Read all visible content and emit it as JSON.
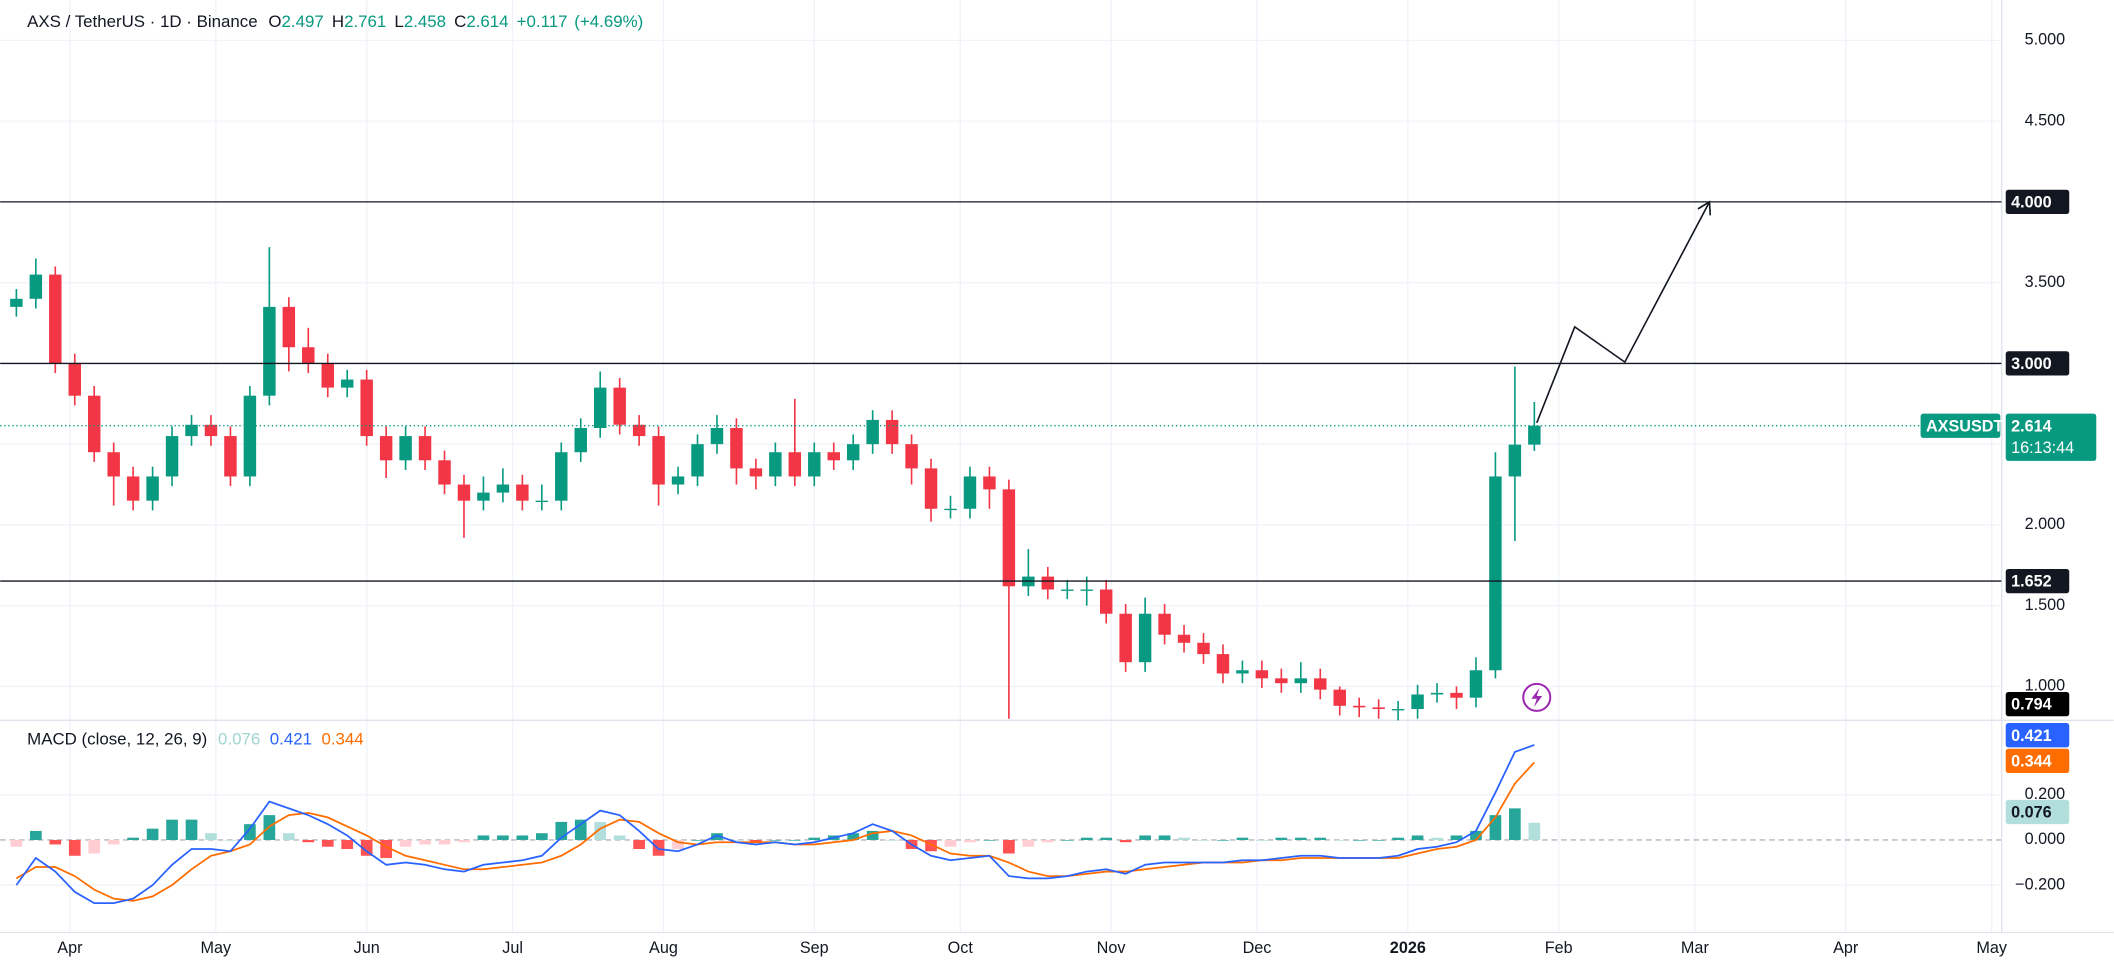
{
  "chart_data": [
    {
      "type": "candlestick",
      "title": "AXS / TetherUS · 1D · Binance",
      "ohlc_letters": [
        "O",
        "H",
        "L",
        "C"
      ],
      "change": {
        "value": 0.117,
        "label": "+0.117"
      },
      "change_percent": {
        "value": 4.69,
        "label": "(+4.69%)"
      },
      "x": [
        0,
        4,
        8,
        12,
        16,
        20,
        24,
        28,
        32,
        36,
        40,
        44,
        48,
        52,
        56,
        60,
        64,
        68,
        72,
        76,
        80,
        84,
        88,
        92,
        96,
        100,
        104,
        108,
        112,
        116,
        120,
        124,
        128,
        132,
        136,
        140,
        144,
        148,
        152,
        156,
        160,
        164,
        168,
        172,
        176,
        180,
        184,
        188,
        192,
        196,
        200,
        204,
        208,
        212,
        216,
        220,
        224,
        228,
        232,
        236,
        240,
        244,
        248,
        252,
        256,
        260,
        264,
        268,
        272,
        276,
        280,
        284,
        288,
        292,
        296,
        300,
        304,
        308,
        312
      ],
      "open": [
        3.35,
        3.4,
        3.55,
        3.0,
        2.8,
        2.45,
        2.3,
        2.15,
        2.3,
        2.55,
        2.62,
        2.55,
        2.3,
        2.8,
        3.35,
        3.1,
        3.0,
        2.85,
        2.9,
        2.55,
        2.4,
        2.55,
        2.4,
        2.25,
        2.15,
        2.2,
        2.25,
        2.15,
        2.15,
        2.45,
        2.6,
        2.85,
        2.62,
        2.55,
        2.25,
        2.3,
        2.5,
        2.6,
        2.35,
        2.3,
        2.45,
        2.3,
        2.45,
        2.4,
        2.5,
        2.65,
        2.5,
        2.35,
        2.1,
        2.1,
        2.3,
        2.22,
        1.62,
        1.68,
        1.6,
        1.6,
        1.6,
        1.45,
        1.15,
        1.45,
        1.32,
        1.27,
        1.2,
        1.08,
        1.1,
        1.05,
        1.02,
        1.05,
        0.98,
        0.88,
        0.87,
        0.86,
        0.86,
        0.95,
        0.96,
        0.93,
        1.1,
        2.3,
        2.497
      ],
      "high": [
        3.46,
        3.65,
        3.6,
        3.06,
        2.86,
        2.51,
        2.36,
        2.36,
        2.61,
        2.68,
        2.68,
        2.61,
        2.86,
        3.72,
        3.41,
        3.22,
        3.06,
        2.96,
        2.96,
        2.61,
        2.61,
        2.61,
        2.46,
        2.31,
        2.3,
        2.35,
        2.31,
        2.25,
        2.51,
        2.66,
        2.95,
        2.91,
        2.68,
        2.61,
        2.36,
        2.56,
        2.68,
        2.66,
        2.41,
        2.51,
        2.78,
        2.51,
        2.51,
        2.56,
        2.71,
        2.71,
        2.56,
        2.41,
        2.18,
        2.36,
        2.36,
        2.28,
        1.85,
        1.74,
        1.66,
        1.68,
        1.66,
        1.51,
        1.55,
        1.51,
        1.38,
        1.33,
        1.26,
        1.16,
        1.16,
        1.11,
        1.15,
        1.11,
        1.0,
        0.93,
        0.92,
        0.91,
        1.01,
        1.02,
        1.0,
        1.18,
        2.45,
        2.98,
        2.761
      ],
      "low": [
        3.29,
        3.34,
        2.94,
        2.74,
        2.39,
        2.12,
        2.09,
        2.09,
        2.24,
        2.49,
        2.49,
        2.24,
        2.24,
        2.74,
        2.95,
        2.94,
        2.79,
        2.79,
        2.49,
        2.29,
        2.34,
        2.34,
        2.19,
        1.92,
        2.09,
        2.14,
        2.09,
        2.09,
        2.09,
        2.39,
        2.54,
        2.56,
        2.49,
        2.12,
        2.19,
        2.24,
        2.44,
        2.25,
        2.22,
        2.24,
        2.24,
        2.24,
        2.34,
        2.34,
        2.44,
        2.44,
        2.25,
        2.02,
        2.04,
        2.04,
        2.1,
        0.8,
        1.56,
        1.54,
        1.54,
        1.5,
        1.39,
        1.09,
        1.09,
        1.26,
        1.21,
        1.14,
        1.02,
        1.02,
        0.99,
        0.96,
        0.96,
        0.92,
        0.82,
        0.81,
        0.8,
        0.79,
        0.8,
        0.9,
        0.86,
        0.87,
        1.05,
        1.9,
        2.458
      ],
      "close": [
        3.4,
        3.55,
        3.0,
        2.8,
        2.45,
        2.3,
        2.15,
        2.3,
        2.55,
        2.62,
        2.55,
        2.3,
        2.8,
        3.35,
        3.1,
        3.0,
        2.85,
        2.9,
        2.55,
        2.4,
        2.55,
        2.4,
        2.25,
        2.15,
        2.2,
        2.25,
        2.15,
        2.15,
        2.45,
        2.6,
        2.85,
        2.62,
        2.55,
        2.25,
        2.3,
        2.5,
        2.6,
        2.35,
        2.3,
        2.45,
        2.3,
        2.45,
        2.4,
        2.5,
        2.65,
        2.5,
        2.35,
        2.1,
        2.1,
        2.3,
        2.22,
        1.62,
        1.68,
        1.6,
        1.6,
        1.6,
        1.45,
        1.15,
        1.45,
        1.32,
        1.27,
        1.2,
        1.08,
        1.1,
        1.05,
        1.02,
        1.05,
        0.98,
        0.88,
        0.87,
        0.86,
        0.86,
        0.95,
        0.96,
        0.93,
        1.1,
        2.3,
        2.497,
        2.614
      ],
      "up_color": "#089981",
      "down_color": "#f23645",
      "xlim": [
        -3,
        408
      ],
      "xticks": [
        {
          "value": 11,
          "label": "Apr"
        },
        {
          "value": 41,
          "label": "May"
        },
        {
          "value": 72,
          "label": "Jun"
        },
        {
          "value": 102,
          "label": "Jul"
        },
        {
          "value": 133,
          "label": "Aug"
        },
        {
          "value": 164,
          "label": "Sep"
        },
        {
          "value": 194,
          "label": "Oct"
        },
        {
          "value": 225,
          "label": "Nov"
        },
        {
          "value": 255,
          "label": "Dec"
        },
        {
          "value": 286,
          "label": "2026"
        },
        {
          "value": 317,
          "label": "Feb"
        },
        {
          "value": 345,
          "label": "Mar"
        },
        {
          "value": 376,
          "label": "Apr"
        },
        {
          "value": 406,
          "label": "May"
        }
      ],
      "ylim": [
        0.79,
        5.25
      ],
      "yticks": [
        {
          "value": 1,
          "label": "1.000"
        },
        {
          "value": 1.5,
          "label": "1.500"
        },
        {
          "value": 2,
          "label": "2.000"
        },
        {
          "value": 2.5,
          "label": "2.500"
        },
        {
          "value": 3,
          "label": "3.000"
        },
        {
          "value": 3.5,
          "label": "3.500"
        },
        {
          "value": 4,
          "label": "4.000"
        },
        {
          "value": 4.5,
          "label": "4.500"
        },
        {
          "value": 5,
          "label": "5.000"
        }
      ],
      "grid": true,
      "levels": [
        {
          "value": 4,
          "label": "4.000"
        },
        {
          "value": 3,
          "label": "3.000"
        },
        {
          "value": 1.652,
          "label": "1.652"
        }
      ],
      "level_color": "#131722",
      "low_marker": {
        "value": 0.794,
        "label": "0.794"
      },
      "last_price": {
        "symbol": "AXSUSDT",
        "countdown": "16:13:44"
      },
      "projection": {
        "x": [
          312.5,
          320.3,
          330.6,
          348
        ],
        "y": [
          2.632,
          3.226,
          3.008,
          4.0
        ]
      }
    },
    {
      "type": "macd",
      "title": "MACD (close, 12, 26, 9)",
      "histogram": [
        -0.03,
        0.04,
        -0.02,
        -0.07,
        -0.06,
        -0.02,
        0.01,
        0.05,
        0.09,
        0.09,
        0.03,
        0.0,
        0.07,
        0.11,
        0.03,
        -0.01,
        -0.03,
        -0.04,
        -0.07,
        -0.08,
        -0.03,
        -0.02,
        -0.02,
        -0.01,
        0.02,
        0.02,
        0.02,
        0.03,
        0.08,
        0.09,
        0.08,
        0.02,
        -0.04,
        -0.07,
        -0.04,
        0.0,
        0.03,
        0.0,
        -0.01,
        0.0,
        0.0,
        0.01,
        0.02,
        0.03,
        0.04,
        0.0,
        -0.04,
        -0.05,
        -0.03,
        -0.01,
        0.0,
        -0.06,
        -0.03,
        -0.01,
        0.0,
        0.01,
        0.01,
        -0.01,
        0.02,
        0.02,
        0.01,
        0.0,
        0.0,
        0.01,
        0.0,
        0.01,
        0.01,
        0.01,
        0.0,
        0.0,
        0.0,
        0.01,
        0.02,
        0.01,
        0.02,
        0.04,
        0.11,
        0.14,
        0.076
      ],
      "macd_line": [
        -0.2,
        -0.08,
        -0.14,
        -0.23,
        -0.28,
        -0.28,
        -0.26,
        -0.2,
        -0.11,
        -0.04,
        -0.04,
        -0.05,
        0.05,
        0.17,
        0.14,
        0.11,
        0.07,
        0.02,
        -0.05,
        -0.11,
        -0.1,
        -0.11,
        -0.13,
        -0.14,
        -0.11,
        -0.1,
        -0.09,
        -0.07,
        0.01,
        0.07,
        0.13,
        0.11,
        0.04,
        -0.04,
        -0.05,
        -0.02,
        0.02,
        -0.01,
        -0.02,
        -0.01,
        -0.02,
        -0.01,
        0.01,
        0.03,
        0.07,
        0.04,
        -0.02,
        -0.07,
        -0.09,
        -0.08,
        -0.07,
        -0.16,
        -0.17,
        -0.17,
        -0.16,
        -0.14,
        -0.13,
        -0.15,
        -0.11,
        -0.1,
        -0.1,
        -0.1,
        -0.1,
        -0.09,
        -0.09,
        -0.08,
        -0.07,
        -0.07,
        -0.08,
        -0.08,
        -0.08,
        -0.07,
        -0.04,
        -0.03,
        -0.01,
        0.04,
        0.21,
        0.39,
        0.421
      ],
      "signal_line": [
        -0.17,
        -0.12,
        -0.12,
        -0.16,
        -0.22,
        -0.26,
        -0.27,
        -0.25,
        -0.2,
        -0.13,
        -0.07,
        -0.05,
        -0.02,
        0.06,
        0.11,
        0.12,
        0.1,
        0.06,
        0.02,
        -0.03,
        -0.07,
        -0.09,
        -0.11,
        -0.13,
        -0.13,
        -0.12,
        -0.11,
        -0.1,
        -0.07,
        -0.02,
        0.05,
        0.09,
        0.08,
        0.03,
        -0.01,
        -0.02,
        -0.01,
        -0.01,
        -0.01,
        -0.01,
        -0.02,
        -0.02,
        -0.01,
        0.0,
        0.03,
        0.04,
        0.02,
        -0.02,
        -0.06,
        -0.07,
        -0.07,
        -0.1,
        -0.14,
        -0.16,
        -0.16,
        -0.15,
        -0.14,
        -0.14,
        -0.13,
        -0.12,
        -0.11,
        -0.1,
        -0.1,
        -0.1,
        -0.09,
        -0.09,
        -0.08,
        -0.08,
        -0.08,
        -0.08,
        -0.08,
        -0.08,
        -0.06,
        -0.04,
        -0.03,
        0.0,
        0.1,
        0.25,
        0.344
      ],
      "colors": {
        "histogram_up": "#26a69a",
        "histogram_up_fading": "#b2dfdb",
        "histogram_down": "#ff5252",
        "histogram_down_fading": "#ffcdd2",
        "macd": "#2962ff",
        "signal": "#ff6d00"
      },
      "ylim": [
        -0.41,
        0.53
      ],
      "yticks": [
        {
          "value": -0.2,
          "label": "−0.200"
        },
        {
          "value": 0,
          "label": "0.000"
        },
        {
          "value": 0.2,
          "label": "0.200"
        }
      ]
    }
  ]
}
